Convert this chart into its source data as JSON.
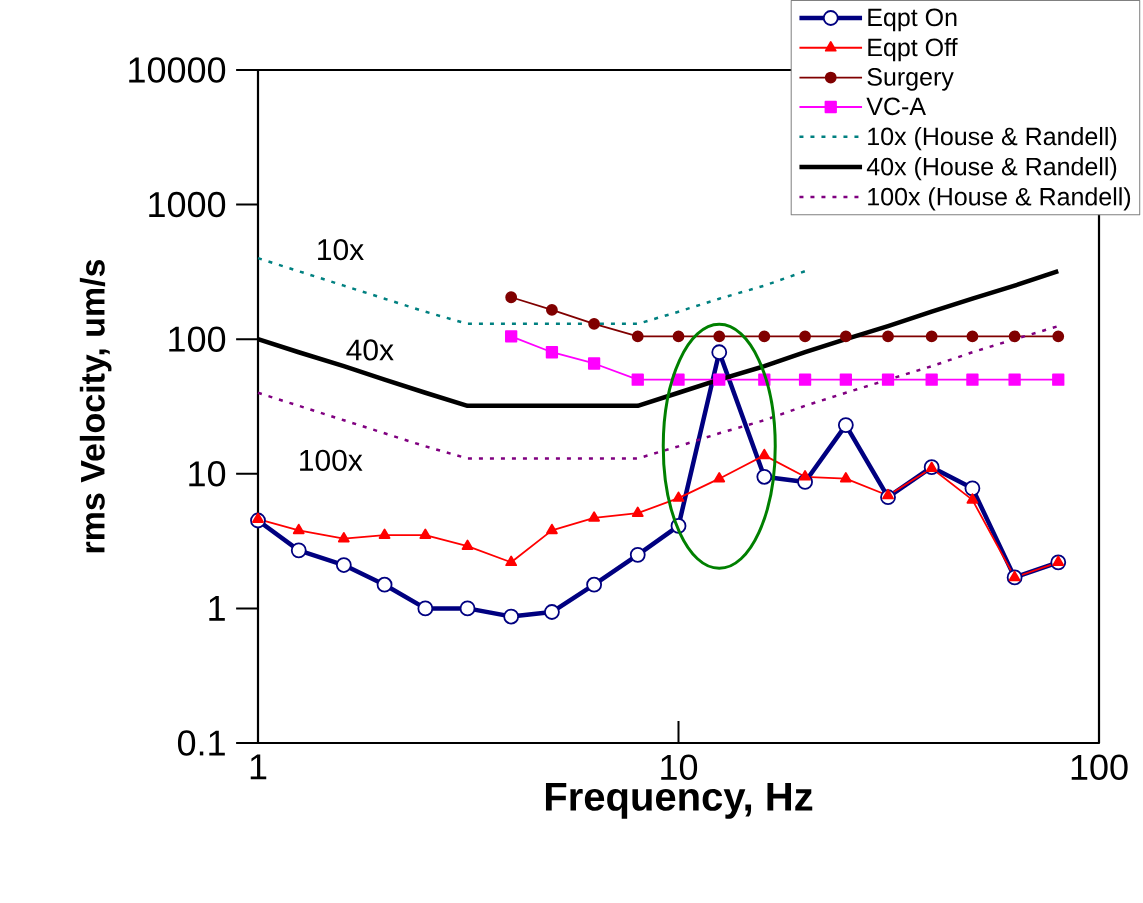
{
  "chart_data": {
    "type": "line",
    "xlabel": "Frequency, Hz",
    "ylabel": "rms Velocity, um/s",
    "x": [
      1,
      1.25,
      1.6,
      2,
      2.5,
      3.15,
      4,
      5,
      6.3,
      8,
      10,
      12.5,
      16,
      20,
      25,
      31.5,
      40,
      50,
      63,
      80
    ],
    "series": [
      {
        "name": "Eqpt On",
        "color": "#000080",
        "marker": "circle",
        "line_style": "solid",
        "values": [
          4.5,
          2.7,
          2.1,
          1.5,
          1.0,
          1.0,
          0.87,
          0.94,
          1.5,
          2.5,
          4.1,
          80,
          9.5,
          8.7,
          23,
          6.7,
          11.2,
          7.8,
          1.7,
          2.2
        ]
      },
      {
        "name": "Eqpt Off",
        "color": "#ff0000",
        "marker": "triangle",
        "line_style": "solid",
        "values": [
          4.6,
          3.8,
          3.3,
          3.5,
          3.5,
          2.9,
          2.2,
          3.8,
          4.7,
          5.1,
          6.6,
          9.2,
          13.7,
          9.5,
          9.2,
          6.9,
          11,
          6.4,
          1.7,
          2.2
        ]
      },
      {
        "name": "Surgery",
        "color": "#800000",
        "marker": "circle",
        "line_style": "solid",
        "values": [
          null,
          null,
          null,
          null,
          null,
          null,
          205,
          165,
          130,
          105,
          105,
          105,
          105,
          105,
          105,
          105,
          105,
          105,
          105,
          105
        ]
      },
      {
        "name": "VC-A",
        "color": "#ff00ff",
        "marker": "square",
        "line_style": "solid",
        "values": [
          null,
          null,
          null,
          null,
          null,
          null,
          105,
          80,
          66,
          50,
          50,
          50,
          50,
          50,
          50,
          50,
          50,
          50,
          50,
          50
        ]
      },
      {
        "name": "10x (House & Randell)",
        "color": "#008080",
        "marker": "none",
        "line_style": "dotted",
        "values": [
          400,
          320,
          250,
          200,
          160,
          130,
          130,
          130,
          130,
          130,
          160,
          200,
          250,
          320,
          null,
          null,
          null,
          null,
          null,
          null
        ]
      },
      {
        "name": "40x (House & Randell)",
        "color": "#000000",
        "marker": "none",
        "line_style": "solid",
        "values": [
          100,
          80,
          63,
          50,
          40,
          32,
          32,
          32,
          32,
          32,
          40,
          50,
          63,
          80,
          100,
          125,
          160,
          200,
          250,
          320
        ]
      },
      {
        "name": "100x (House & Randell)",
        "color": "#800080",
        "marker": "none",
        "line_style": "dotted",
        "values": [
          40,
          32,
          25,
          20,
          16,
          13,
          13,
          13,
          13,
          13,
          16,
          20,
          25,
          32,
          40,
          50,
          63,
          80,
          100,
          125
        ]
      }
    ],
    "annotations": [
      "10x",
      "40x",
      "100x"
    ],
    "xlim": [
      1,
      100
    ],
    "ylim": [
      0.1,
      10000
    ],
    "xticks": [
      1,
      10,
      100
    ],
    "yticks": [
      0.1,
      1,
      10,
      100,
      1000,
      10000
    ],
    "log": "xy",
    "legend": "top right"
  }
}
